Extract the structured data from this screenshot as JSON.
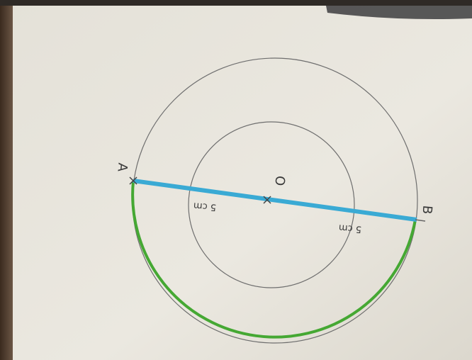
{
  "points": {
    "a": "A",
    "o": "O",
    "b": "B"
  },
  "measures": [
    "5 cm",
    "5 cm"
  ]
}
